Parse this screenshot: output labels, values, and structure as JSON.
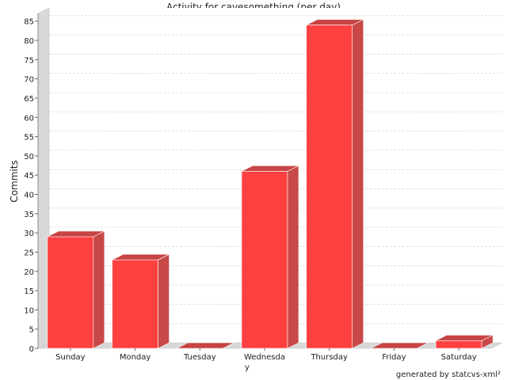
{
  "chart_data": {
    "type": "bar",
    "title": "Activity for cavesomething (per day)",
    "ylabel": "Commits",
    "xlabel": "",
    "categories": [
      "Sunday",
      "Monday",
      "Tuesday",
      "Wednesday",
      "Thursday",
      "Friday",
      "Saturday"
    ],
    "values": [
      29,
      23,
      0,
      46,
      84,
      0,
      2
    ],
    "ylim": [
      0,
      87
    ],
    "yticks": [
      0,
      5,
      10,
      15,
      20,
      25,
      30,
      35,
      40,
      45,
      50,
      55,
      60,
      65,
      70,
      75,
      80,
      85
    ],
    "grid": true,
    "bar_color": "#ff4040",
    "bar_side_color": "#c84848",
    "bar_top_color": "#c84444",
    "wall_color": "#d8d8d8",
    "footer": "generated by statcvs-xml²"
  }
}
